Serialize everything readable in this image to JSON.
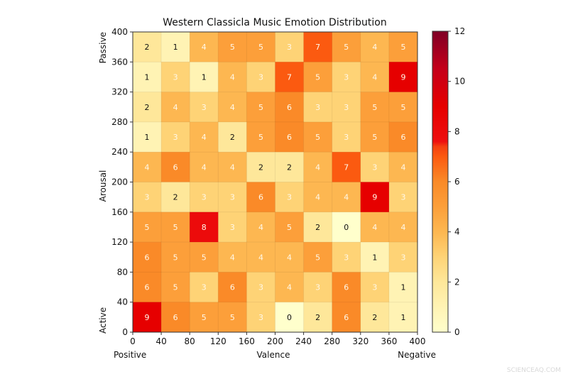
{
  "chart_data": {
    "type": "heatmap",
    "title": "Western Classicla Music Emotion Distribution",
    "xlabel": "Valence",
    "ylabel": "Arousal",
    "x_end_labels": {
      "left": "Positive",
      "right": "Negative"
    },
    "y_end_labels": {
      "top": "Passive",
      "bottom": "Active"
    },
    "xlim": [
      0,
      400
    ],
    "ylim": [
      0,
      400
    ],
    "x_ticks": [
      "0",
      "40",
      "80",
      "120",
      "160",
      "200",
      "240",
      "280",
      "320",
      "360",
      "400"
    ],
    "y_ticks": [
      "0",
      "40",
      "80",
      "120",
      "160",
      "200",
      "240",
      "280",
      "320",
      "360",
      "400"
    ],
    "rows_top_to_bottom": [
      [
        2,
        1,
        4,
        5,
        5,
        3,
        7,
        5,
        4,
        5
      ],
      [
        1,
        3,
        1,
        4,
        3,
        7,
        5,
        3,
        4,
        9
      ],
      [
        2,
        4,
        3,
        4,
        5,
        6,
        3,
        3,
        5,
        5
      ],
      [
        1,
        3,
        4,
        2,
        5,
        6,
        5,
        3,
        5,
        6
      ],
      [
        4,
        6,
        4,
        4,
        2,
        2,
        4,
        7,
        3,
        4
      ],
      [
        3,
        2,
        3,
        3,
        6,
        3,
        4,
        4,
        9,
        3
      ],
      [
        5,
        5,
        8,
        3,
        4,
        5,
        2,
        0,
        4,
        4
      ],
      [
        6,
        5,
        5,
        4,
        4,
        4,
        5,
        3,
        1,
        3
      ],
      [
        6,
        5,
        3,
        6,
        3,
        4,
        3,
        6,
        3,
        1
      ],
      [
        9,
        6,
        5,
        5,
        3,
        0,
        2,
        6,
        2,
        1
      ]
    ],
    "colorbar": {
      "range": [
        0,
        12
      ],
      "ticks": [
        "0",
        "2",
        "4",
        "6",
        "8",
        "10",
        "12"
      ],
      "colormap": "YlOrRd",
      "stops": [
        [
          0,
          "#ffffcc"
        ],
        [
          1,
          "#fff3b4"
        ],
        [
          2,
          "#fee79a"
        ],
        [
          3,
          "#fed376"
        ],
        [
          4,
          "#fdb751"
        ],
        [
          5,
          "#fc9f3a"
        ],
        [
          6,
          "#fa8a28"
        ],
        [
          7,
          "#fb5a10"
        ],
        [
          7.4,
          "#f44010"
        ],
        [
          7.6,
          "#ee1010"
        ],
        [
          9,
          "#e60000"
        ],
        [
          10.5,
          "#c4001a"
        ],
        [
          12,
          "#800026"
        ]
      ]
    }
  },
  "watermark": "SCIENCEAQ.COM"
}
